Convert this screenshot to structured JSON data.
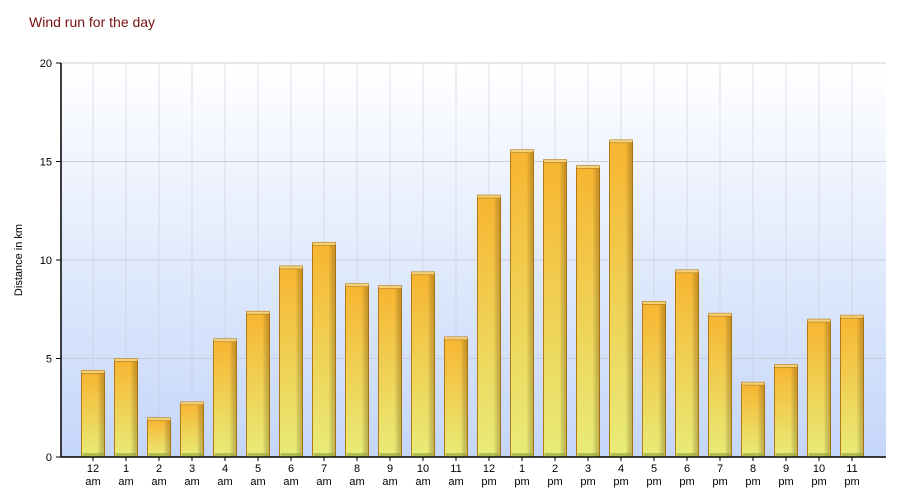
{
  "chart_data": {
    "type": "bar",
    "title": "Wind run for the day",
    "xlabel": "",
    "ylabel": "Distance in km",
    "ylim": [
      0,
      20
    ],
    "yticks": [
      0,
      5,
      10,
      15,
      20
    ],
    "grid": true,
    "categories": [
      [
        "12",
        "am"
      ],
      [
        "1",
        "am"
      ],
      [
        "2",
        "am"
      ],
      [
        "3",
        "am"
      ],
      [
        "4",
        "am"
      ],
      [
        "5",
        "am"
      ],
      [
        "6",
        "am"
      ],
      [
        "7",
        "am"
      ],
      [
        "8",
        "am"
      ],
      [
        "9",
        "am"
      ],
      [
        "10",
        "am"
      ],
      [
        "11",
        "am"
      ],
      [
        "12",
        "pm"
      ],
      [
        "1",
        "pm"
      ],
      [
        "2",
        "pm"
      ],
      [
        "3",
        "pm"
      ],
      [
        "4",
        "pm"
      ],
      [
        "5",
        "pm"
      ],
      [
        "6",
        "pm"
      ],
      [
        "7",
        "pm"
      ],
      [
        "8",
        "pm"
      ],
      [
        "9",
        "pm"
      ],
      [
        "10",
        "pm"
      ],
      [
        "11",
        "pm"
      ]
    ],
    "values": [
      4.3,
      4.9,
      1.9,
      2.7,
      5.9,
      7.3,
      9.6,
      10.8,
      8.7,
      8.6,
      9.3,
      6.0,
      13.2,
      15.5,
      15.0,
      14.7,
      16.0,
      7.8,
      9.4,
      7.2,
      3.7,
      4.6,
      6.9,
      7.1
    ],
    "colors": {
      "bar_top": "#f7b531",
      "bar_bottom": "#e8ec78",
      "bar_edge": "#b07a18",
      "bar_base": "#8fa23a",
      "plot_bg_top": "#ffffff",
      "plot_bg_bottom": "#c4d6fa",
      "grid": "#c8cdd6",
      "title": "#7a1010"
    }
  }
}
